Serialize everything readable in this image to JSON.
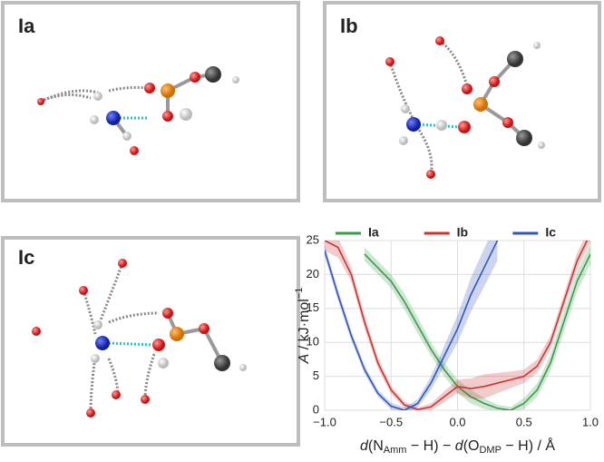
{
  "panels": [
    {
      "label": "Ia"
    },
    {
      "label": "Ib"
    },
    {
      "label": "Ic"
    }
  ],
  "chart_data": {
    "type": "line",
    "y_label": [
      "A",
      " / kJ·mol",
      "−1"
    ],
    "x_label": [
      "d",
      "(N",
      "Amm",
      " − H) − ",
      "d",
      "(O",
      "DMP",
      " − H) / Å"
    ],
    "x": [
      -1.0,
      -0.9,
      -0.8,
      -0.7,
      -0.6,
      -0.5,
      -0.4,
      -0.3,
      -0.2,
      -0.1,
      0.0,
      0.1,
      0.2,
      0.3,
      0.4,
      0.5,
      0.6,
      0.7,
      0.8,
      0.9,
      1.0
    ],
    "series": [
      {
        "name": "Ia",
        "color": "#3a9a4a",
        "values": [
          null,
          null,
          null,
          23,
          21,
          19,
          16,
          12.5,
          9,
          6,
          3.5,
          2,
          1,
          0.3,
          0,
          1,
          3,
          7,
          13,
          19,
          23
        ],
        "errors": [
          null,
          null,
          null,
          1,
          1,
          1,
          1.2,
          1.2,
          1,
          1,
          1,
          1,
          0.8,
          0.5,
          0.5,
          0.8,
          1,
          1.2,
          1.5,
          1.5,
          1.5
        ]
      },
      {
        "name": "Ib",
        "color": "#cc3333",
        "values": [
          25,
          24,
          20,
          13,
          7,
          3,
          0.8,
          0.1,
          0.5,
          2,
          3.5,
          3.2,
          3.5,
          4,
          4.5,
          5,
          6.5,
          10,
          16,
          22,
          26
        ],
        "errors": [
          1.5,
          1.5,
          1,
          1,
          0.8,
          0.6,
          0.5,
          0.3,
          0.5,
          0.8,
          1,
          1.5,
          1.8,
          1.5,
          1.2,
          1,
          1,
          1,
          1,
          1.2,
          1.2
        ]
      },
      {
        "name": "Ic",
        "color": "#3355bb",
        "values": [
          23.5,
          17,
          11,
          6,
          2.5,
          0.6,
          0,
          1,
          4,
          8,
          12,
          17,
          21,
          25,
          null,
          null,
          null,
          null,
          null,
          null,
          null
        ],
        "errors": [
          0.8,
          0.8,
          0.7,
          0.6,
          0.5,
          0.5,
          0.4,
          0.6,
          1,
          1.5,
          2,
          2.5,
          2.8,
          3,
          null,
          null,
          null,
          null,
          null,
          null,
          null
        ]
      }
    ],
    "xlim": [
      -1.0,
      1.0
    ],
    "xticks": [
      {
        "value": -1.0,
        "label": "−1.0"
      },
      {
        "value": -0.5,
        "label": "−0.5"
      },
      {
        "value": 0.0,
        "label": "0.0"
      },
      {
        "value": 0.5,
        "label": "0.5"
      },
      {
        "value": 1.0,
        "label": "1.0"
      }
    ],
    "ylim": [
      0,
      25
    ],
    "yticks": [
      0,
      5,
      10,
      15,
      20,
      25
    ],
    "grid": true,
    "legend": "top"
  }
}
